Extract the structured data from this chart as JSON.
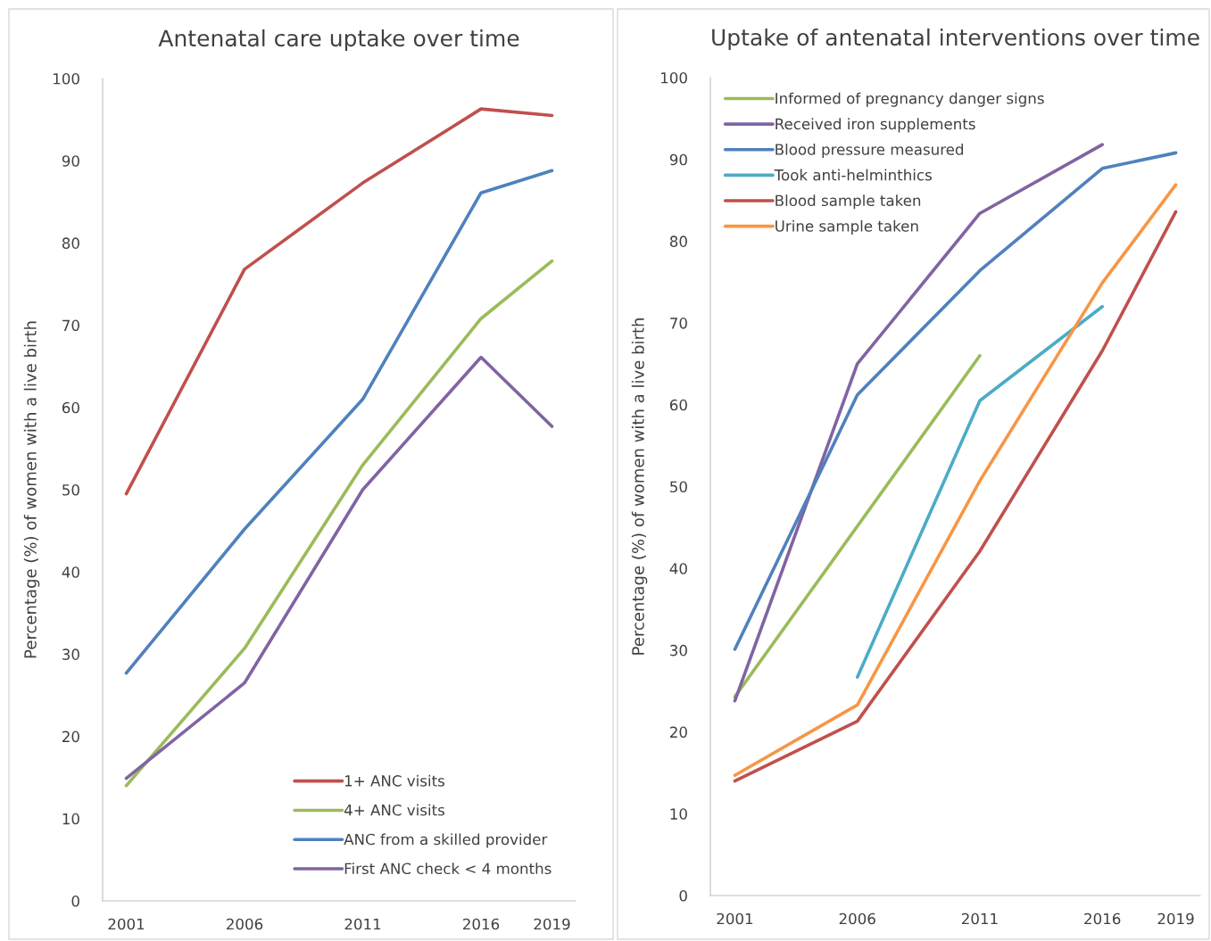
{
  "chart_data": [
    {
      "type": "line",
      "title": "Antenatal care uptake over time",
      "ylabel": "Percentage (%) of women with a live birth",
      "x": [
        2001,
        2006,
        2011,
        2016,
        2019
      ],
      "xlim": [
        2000,
        2020
      ],
      "xticks": [
        2001,
        2006,
        2011,
        2016,
        2019
      ],
      "ylim": [
        0,
        100
      ],
      "yticks": [
        0,
        10,
        20,
        30,
        40,
        50,
        60,
        70,
        80,
        90,
        100
      ],
      "grid": false,
      "legend": "bottom right",
      "marker": "none",
      "line_style": "solid",
      "series": [
        {
          "name": "1+ ANC visits",
          "color": "#c0504d",
          "values": [
            49.5,
            76.8,
            87.3,
            96.3,
            95.5
          ]
        },
        {
          "name": "4+ ANC visits",
          "color": "#9bbb59",
          "values": [
            14.0,
            30.7,
            53.0,
            70.8,
            77.8
          ]
        },
        {
          "name": "ANC from a skilled provider",
          "color": "#4f81bd",
          "values": [
            27.7,
            45.2,
            61.0,
            86.1,
            88.8
          ]
        },
        {
          "name": "First ANC check < 4 months",
          "color": "#8064a2",
          "values": [
            14.9,
            26.5,
            50.0,
            66.1,
            57.7
          ]
        }
      ]
    },
    {
      "type": "line",
      "title": "Uptake of antenatal interventions over time",
      "ylabel": "Percentage (%) of women with a live birth",
      "x": [
        2001,
        2006,
        2011,
        2016,
        2019
      ],
      "xlim": [
        2000,
        2020
      ],
      "xticks": [
        2001,
        2006,
        2011,
        2016,
        2019
      ],
      "ylim": [
        0,
        100
      ],
      "yticks": [
        0,
        10,
        20,
        30,
        40,
        50,
        60,
        70,
        80,
        90,
        100
      ],
      "grid": false,
      "legend": "top left",
      "marker": "none",
      "line_style": "solid",
      "series": [
        {
          "name": "Informed of pregnancy danger signs",
          "color": "#9bbb59",
          "x": [
            2001,
            2011
          ],
          "values": [
            24.3,
            66.0
          ]
        },
        {
          "name": "Received iron supplements",
          "color": "#8064a2",
          "x": [
            2001,
            2006,
            2011,
            2016
          ],
          "values": [
            23.8,
            65.0,
            83.4,
            91.8
          ]
        },
        {
          "name": "Blood pressure measured",
          "color": "#4f81bd",
          "values": [
            30.1,
            61.2,
            76.4,
            88.9,
            90.8
          ]
        },
        {
          "name": "Took anti-helminthics",
          "color": "#4bacc6",
          "x": [
            2006,
            2011,
            2016
          ],
          "values": [
            26.7,
            60.5,
            72.0
          ]
        },
        {
          "name": "Blood sample taken",
          "color": "#c0504d",
          "values": [
            14.0,
            21.3,
            42.1,
            66.6,
            83.6
          ]
        },
        {
          "name": "Urine sample taken",
          "color": "#f79646",
          "values": [
            14.7,
            23.3,
            50.7,
            74.9,
            86.9
          ]
        }
      ]
    }
  ]
}
